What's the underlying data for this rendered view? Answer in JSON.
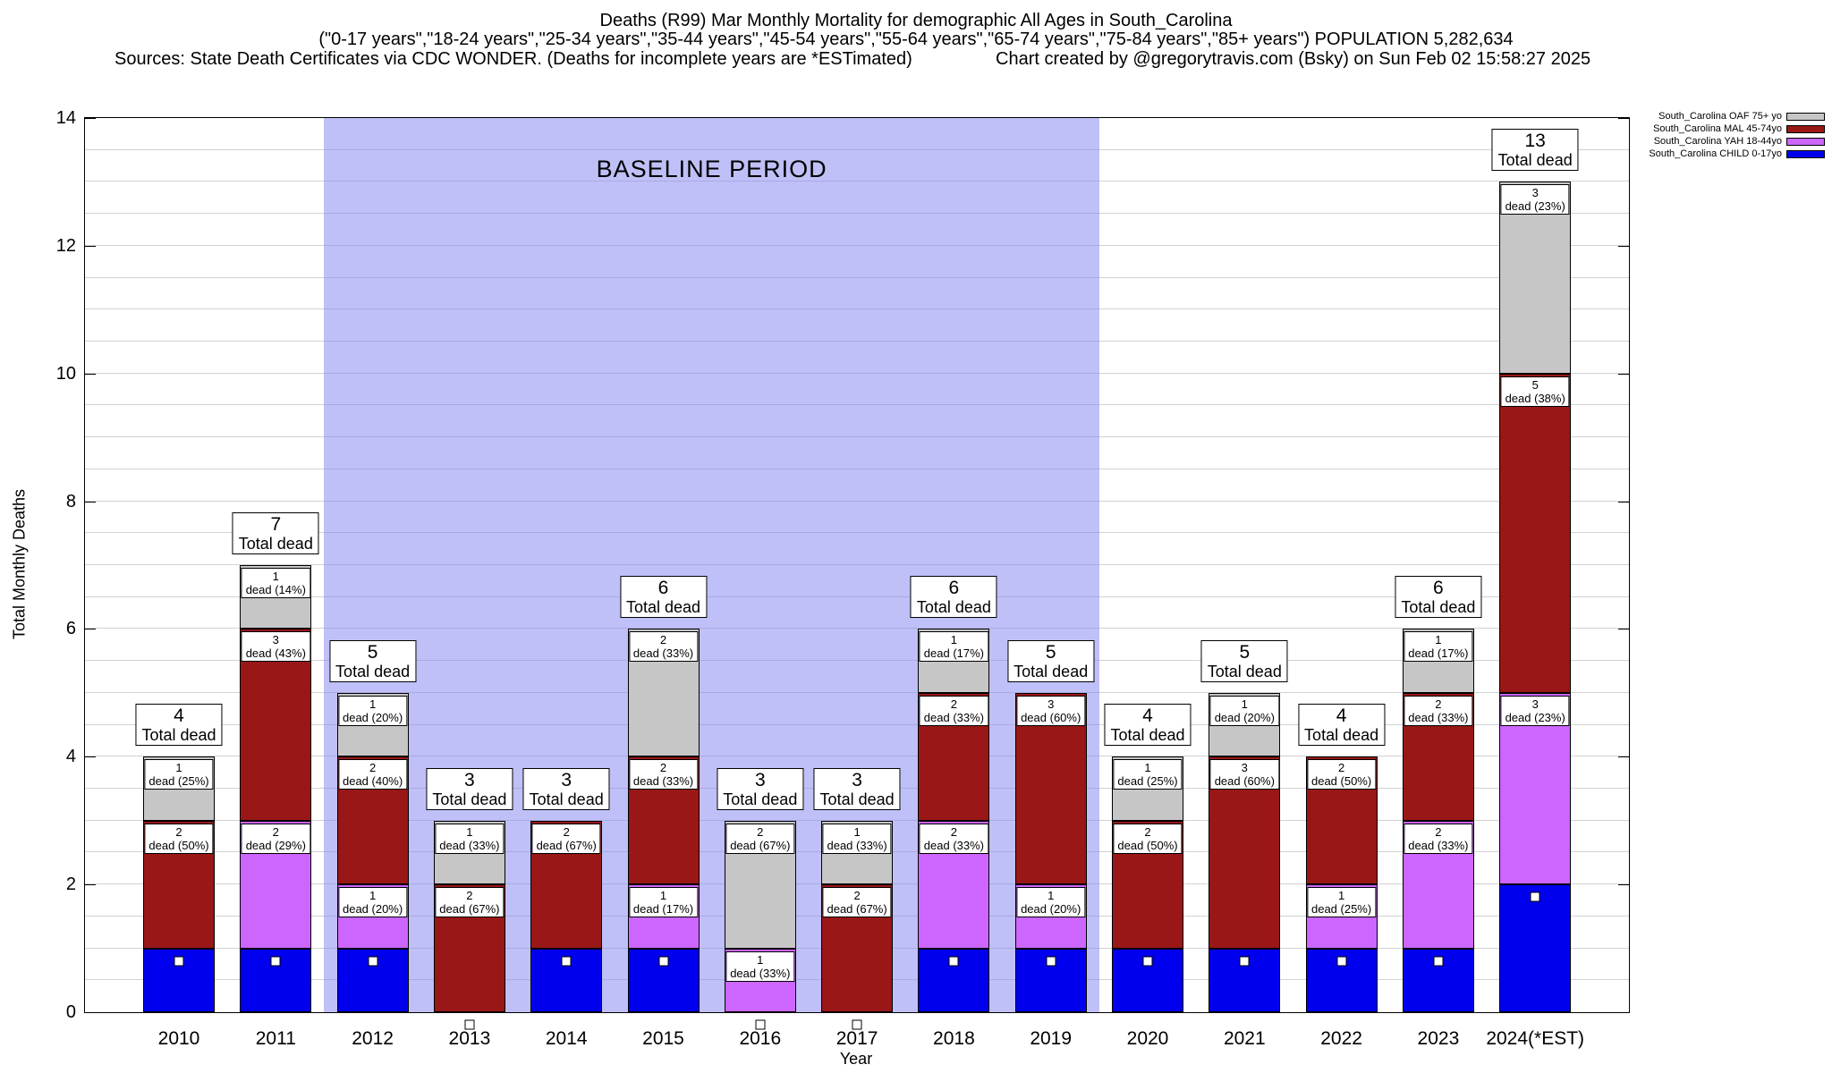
{
  "header": {
    "title_line1": "Deaths (R99) Mar Monthly Mortality for demographic All Ages in South_Carolina",
    "title_line2": "(\"0-17 years\",\"18-24 years\",\"25-34 years\",\"35-44 years\",\"45-54 years\",\"55-64 years\",\"65-74 years\",\"75-84 years\",\"85+ years\") POPULATION 5,282,634",
    "title_line3_left": "Sources: State Death Certificates via CDC WONDER. (Deaths for incomplete years are *ESTimated)",
    "title_line3_right": "Chart created by @gregorytravis.com (Bsky) on Sun Feb 02 15:58:27 2025"
  },
  "chart_data": {
    "type": "bar",
    "stacked": true,
    "title": "Deaths (R99) Mar Monthly Mortality for demographic All Ages in South_Carolina",
    "xlabel": "Year",
    "ylabel": "Total Monthly Deaths",
    "ylim": [
      0,
      14
    ],
    "yticks": [
      0,
      2,
      4,
      6,
      8,
      10,
      12,
      14
    ],
    "grid": "horizontal, every 0.5",
    "legend_position": "top-right-outside",
    "baseline_region": {
      "label": "BASELINE PERIOD",
      "from": "2012",
      "to": "2019",
      "color": "#b9b9f2"
    },
    "categories": [
      "2010",
      "2011",
      "2012",
      "2013",
      "2014",
      "2015",
      "2016",
      "2017",
      "2018",
      "2019",
      "2020",
      "2021",
      "2022",
      "2023",
      "2024(*EST)"
    ],
    "series": [
      {
        "key": "OAF",
        "label": "South_Carolina OAF 75+ yo",
        "color": "#c6c6c6"
      },
      {
        "key": "MAL",
        "label": "South_Carolina MAL 45-74yo",
        "color": "#991717"
      },
      {
        "key": "YAH",
        "label": "South_Carolina YAH 18-44yo",
        "color": "#cc66ff"
      },
      {
        "key": "CHILD",
        "label": "South_Carolina CHILD 0-17yo",
        "color": "#0000ee"
      }
    ],
    "stack_order_bottom_to_top": [
      "CHILD",
      "YAH",
      "MAL",
      "OAF"
    ],
    "bars": [
      {
        "year": "2010",
        "total": 4,
        "total_label": [
          "4",
          "Total dead"
        ],
        "segments": [
          {
            "series": "CHILD",
            "value": 1
          },
          {
            "series": "MAL",
            "value": 2,
            "label": [
              "2",
              "dead (50%)"
            ]
          },
          {
            "series": "OAF",
            "value": 1,
            "label": [
              "1",
              "dead (25%)"
            ]
          }
        ]
      },
      {
        "year": "2011",
        "total": 7,
        "total_label": [
          "7",
          "Total dead"
        ],
        "segments": [
          {
            "series": "CHILD",
            "value": 1
          },
          {
            "series": "YAH",
            "value": 2,
            "label": [
              "2",
              "dead (29%)"
            ]
          },
          {
            "series": "MAL",
            "value": 3,
            "label": [
              "3",
              "dead (43%)"
            ]
          },
          {
            "series": "OAF",
            "value": 1,
            "label": [
              "1",
              "dead (14%)"
            ]
          }
        ]
      },
      {
        "year": "2012",
        "total": 5,
        "total_label": [
          "5",
          "Total dead"
        ],
        "segments": [
          {
            "series": "CHILD",
            "value": 1
          },
          {
            "series": "YAH",
            "value": 1,
            "label": [
              "1",
              "dead (20%)"
            ]
          },
          {
            "series": "MAL",
            "value": 2,
            "label": [
              "2",
              "dead (40%)"
            ]
          },
          {
            "series": "OAF",
            "value": 1,
            "label": [
              "1",
              "dead (20%)"
            ]
          }
        ]
      },
      {
        "year": "2013",
        "total": 3,
        "total_label": [
          "3",
          "Total dead"
        ],
        "segments": [
          {
            "series": "MAL",
            "value": 2,
            "label": [
              "2",
              "dead (67%)"
            ]
          },
          {
            "series": "OAF",
            "value": 1,
            "label": [
              "1",
              "dead (33%)"
            ]
          }
        ]
      },
      {
        "year": "2014",
        "total": 3,
        "total_label": [
          "3",
          "Total dead"
        ],
        "segments": [
          {
            "series": "CHILD",
            "value": 1
          },
          {
            "series": "MAL",
            "value": 2,
            "label": [
              "2",
              "dead (67%)"
            ]
          }
        ]
      },
      {
        "year": "2015",
        "total": 6,
        "total_label": [
          "6",
          "Total dead"
        ],
        "segments": [
          {
            "series": "CHILD",
            "value": 1
          },
          {
            "series": "YAH",
            "value": 1,
            "label": [
              "1",
              "dead (17%)"
            ]
          },
          {
            "series": "MAL",
            "value": 2,
            "label": [
              "2",
              "dead (33%)"
            ]
          },
          {
            "series": "OAF",
            "value": 2,
            "label": [
              "2",
              "dead (33%)"
            ]
          }
        ]
      },
      {
        "year": "2016",
        "total": 3,
        "total_label": [
          "3",
          "Total dead"
        ],
        "segments": [
          {
            "series": "YAH",
            "value": 1,
            "label": [
              "1",
              "dead (33%)"
            ]
          },
          {
            "series": "OAF",
            "value": 2,
            "label": [
              "2",
              "dead (67%)"
            ]
          }
        ]
      },
      {
        "year": "2017",
        "total": 3,
        "total_label": [
          "3",
          "Total dead"
        ],
        "segments": [
          {
            "series": "MAL",
            "value": 2,
            "label": [
              "2",
              "dead (67%)"
            ]
          },
          {
            "series": "OAF",
            "value": 1,
            "label": [
              "1",
              "dead (33%)"
            ]
          }
        ]
      },
      {
        "year": "2018",
        "total": 6,
        "total_label": [
          "6",
          "Total dead"
        ],
        "segments": [
          {
            "series": "CHILD",
            "value": 1
          },
          {
            "series": "YAH",
            "value": 2,
            "label": [
              "2",
              "dead (33%)"
            ]
          },
          {
            "series": "MAL",
            "value": 2,
            "label": [
              "2",
              "dead (33%)"
            ]
          },
          {
            "series": "OAF",
            "value": 1,
            "label": [
              "1",
              "dead (17%)"
            ]
          }
        ]
      },
      {
        "year": "2019",
        "total": 5,
        "total_label": [
          "5",
          "Total dead"
        ],
        "segments": [
          {
            "series": "CHILD",
            "value": 1
          },
          {
            "series": "YAH",
            "value": 1,
            "label": [
              "1",
              "dead (20%)"
            ]
          },
          {
            "series": "MAL",
            "value": 3,
            "label": [
              "3",
              "dead (60%)"
            ]
          }
        ]
      },
      {
        "year": "2020",
        "total": 4,
        "total_label": [
          "4",
          "Total dead"
        ],
        "segments": [
          {
            "series": "CHILD",
            "value": 1
          },
          {
            "series": "MAL",
            "value": 2,
            "label": [
              "2",
              "dead (50%)"
            ]
          },
          {
            "series": "OAF",
            "value": 1,
            "label": [
              "1",
              "dead (25%)"
            ]
          }
        ]
      },
      {
        "year": "2021",
        "total": 5,
        "total_label": [
          "5",
          "Total dead"
        ],
        "segments": [
          {
            "series": "CHILD",
            "value": 1
          },
          {
            "series": "MAL",
            "value": 3,
            "label": [
              "3",
              "dead (60%)"
            ]
          },
          {
            "series": "OAF",
            "value": 1,
            "label": [
              "1",
              "dead (20%)"
            ]
          }
        ]
      },
      {
        "year": "2022",
        "total": 4,
        "total_label": [
          "4",
          "Total dead"
        ],
        "segments": [
          {
            "series": "CHILD",
            "value": 1
          },
          {
            "series": "YAH",
            "value": 1,
            "label": [
              "1",
              "dead (25%)"
            ]
          },
          {
            "series": "MAL",
            "value": 2,
            "label": [
              "2",
              "dead (50%)"
            ]
          }
        ]
      },
      {
        "year": "2023",
        "total": 6,
        "total_label": [
          "6",
          "Total dead"
        ],
        "segments": [
          {
            "series": "CHILD",
            "value": 1
          },
          {
            "series": "YAH",
            "value": 2,
            "label": [
              "2",
              "dead (33%)"
            ]
          },
          {
            "series": "MAL",
            "value": 2,
            "label": [
              "2",
              "dead (33%)"
            ]
          },
          {
            "series": "OAF",
            "value": 1,
            "label": [
              "1",
              "dead (17%)"
            ]
          }
        ]
      },
      {
        "year": "2024(*EST)",
        "total": 13,
        "total_label": [
          "13",
          "Total dead"
        ],
        "segments": [
          {
            "series": "CHILD",
            "value": 2
          },
          {
            "series": "YAH",
            "value": 3,
            "label": [
              "3",
              "dead (23%)"
            ]
          },
          {
            "series": "MAL",
            "value": 5,
            "label": [
              "5",
              "dead (38%)"
            ]
          },
          {
            "series": "OAF",
            "value": 3,
            "label": [
              "3",
              "dead (23%)"
            ]
          }
        ]
      }
    ]
  }
}
